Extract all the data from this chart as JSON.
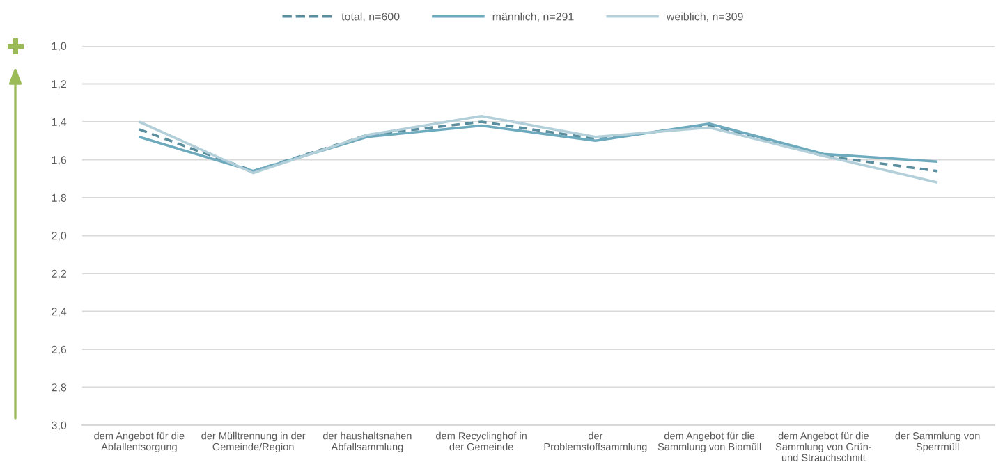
{
  "chart_data": {
    "type": "line",
    "categories": [
      "dem Angebot für die\nAbfallentsorgung",
      "der Mülltrennung in der\nGemeinde/Region",
      "der haushaltsnahen\nAbfallsammlung",
      "dem Recyclinghof in\nder Gemeinde",
      "der\nProblemstoffsammlung",
      "dem Angebot für die\nSammlung von Biomüll",
      "dem Angebot für die\nSammlung von Grün-\nund Strauchschnitt",
      "der Sammlung von\nSperrmüll"
    ],
    "series": [
      {
        "name": "total, n=600",
        "color": "#5a8e9f",
        "line_style": "dashed",
        "values": [
          1.44,
          1.66,
          1.47,
          1.4,
          1.49,
          1.42,
          1.58,
          1.66
        ]
      },
      {
        "name": "männlich, n=291",
        "color": "#6eaabd",
        "line_style": "solid",
        "values": [
          1.48,
          1.66,
          1.48,
          1.42,
          1.5,
          1.41,
          1.57,
          1.61
        ]
      },
      {
        "name": "weiblich, n=309",
        "color": "#b3cfd9",
        "line_style": "solid",
        "values": [
          1.4,
          1.67,
          1.47,
          1.37,
          1.48,
          1.43,
          1.58,
          1.72
        ]
      }
    ],
    "ylim": [
      3.0,
      1.0
    ],
    "yticks": [
      {
        "value": 1.0,
        "label": "1,0"
      },
      {
        "value": 1.2,
        "label": "1,2"
      },
      {
        "value": 1.4,
        "label": "1,4"
      },
      {
        "value": 1.6,
        "label": "1,6"
      },
      {
        "value": 1.8,
        "label": "1,8"
      },
      {
        "value": 2.0,
        "label": "2,0"
      },
      {
        "value": 2.2,
        "label": "2,2"
      },
      {
        "value": 2.4,
        "label": "2,4"
      },
      {
        "value": 2.6,
        "label": "2,6"
      },
      {
        "value": 2.8,
        "label": "2,8"
      },
      {
        "value": 3.0,
        "label": "3,0"
      }
    ],
    "grid": "y",
    "legend": "top"
  }
}
